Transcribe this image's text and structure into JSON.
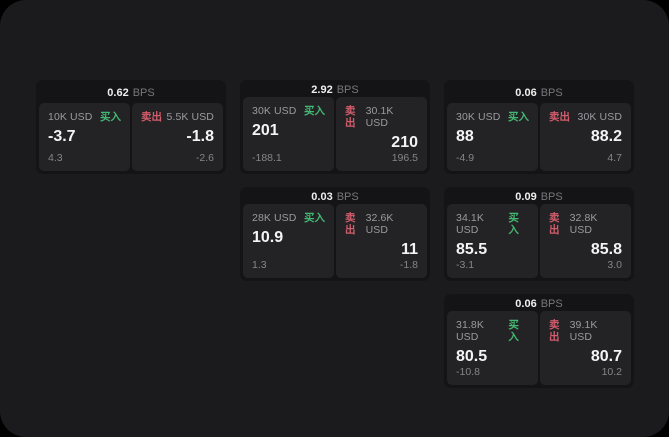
{
  "labels": {
    "bps_unit": "BPS",
    "buy": "买入",
    "sell": "卖出"
  },
  "colors": {
    "buy_green": "#44b873",
    "sell_red": "#d35d6c",
    "panel_background": "#1b1b1d",
    "card_background": "#141416",
    "tile_background": "#232325"
  },
  "cards": [
    {
      "bps": "0.62",
      "buy": {
        "size": "10K USD",
        "price": "-3.7",
        "delta": "4.3"
      },
      "sell": {
        "size": "5.5K USD",
        "price": "-1.8",
        "delta": "-2.6"
      }
    },
    {
      "bps": "2.92",
      "buy": {
        "size": "30K USD",
        "price": "201",
        "delta": "-188.1"
      },
      "sell": {
        "size": "30.1K USD",
        "price": "210",
        "delta": "196.5"
      }
    },
    {
      "bps": "0.06",
      "buy": {
        "size": "30K USD",
        "price": "88",
        "delta": "-4.9"
      },
      "sell": {
        "size": "30K USD",
        "price": "88.2",
        "delta": "4.7"
      }
    },
    {
      "bps": "0.03",
      "buy": {
        "size": "28K USD",
        "price": "10.9",
        "delta": "1.3"
      },
      "sell": {
        "size": "32.6K USD",
        "price": "11",
        "delta": "-1.8"
      }
    },
    {
      "bps": "0.09",
      "buy": {
        "size": "34.1K USD",
        "price": "85.5",
        "delta": "-3.1"
      },
      "sell": {
        "size": "32.8K USD",
        "price": "85.8",
        "delta": "3.0"
      }
    },
    {
      "bps": "0.06",
      "buy": {
        "size": "31.8K USD",
        "price": "80.5",
        "delta": "-10.8"
      },
      "sell": {
        "size": "39.1K USD",
        "price": "80.7",
        "delta": "10.2"
      }
    }
  ]
}
